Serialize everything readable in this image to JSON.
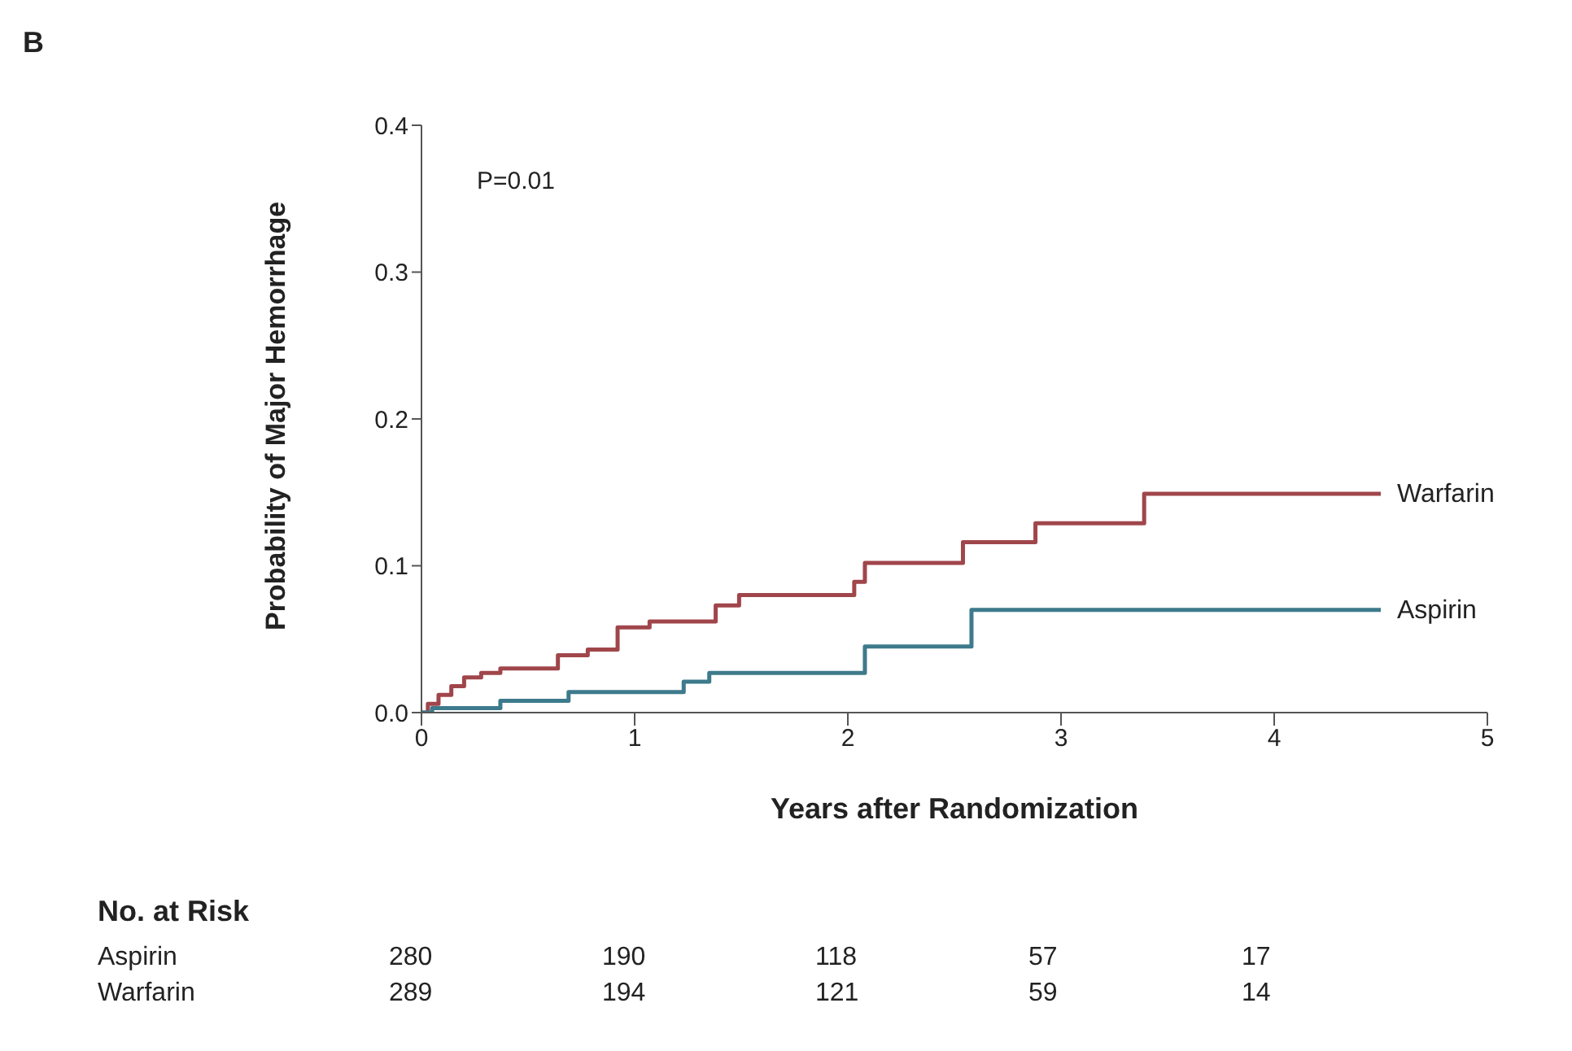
{
  "chart_data": {
    "type": "step",
    "title": "B",
    "xlabel": "Years after Randomization",
    "ylabel": "Probability of Major Hemorrhage",
    "series": [
      {
        "name": "Warfarin",
        "color": "#a0464b",
        "x": [
          0,
          0.03,
          0.08,
          0.14,
          0.2,
          0.28,
          0.37,
          0.64,
          0.78,
          0.92,
          1.07,
          1.38,
          1.49,
          2.03,
          2.08,
          2.54,
          2.88,
          3.39,
          4.5
        ],
        "values": [
          0,
          0.006,
          0.012,
          0.018,
          0.024,
          0.027,
          0.03,
          0.039,
          0.043,
          0.058,
          0.062,
          0.073,
          0.08,
          0.089,
          0.102,
          0.116,
          0.129,
          0.149,
          0.149
        ]
      },
      {
        "name": "Aspirin",
        "color": "#3d7a8c",
        "x": [
          0,
          0.05,
          0.37,
          0.69,
          1.23,
          1.35,
          2.08,
          2.58,
          4.5
        ],
        "values": [
          0,
          0.003,
          0.008,
          0.014,
          0.021,
          0.027,
          0.045,
          0.07,
          0.07
        ]
      }
    ],
    "xlim": [
      0,
      5
    ],
    "xticks": [
      0,
      1,
      2,
      3,
      4,
      5
    ],
    "ylim": [
      0,
      0.4
    ],
    "yticks": [
      {
        "value": 0,
        "label": "0.0"
      },
      0.1,
      0.2,
      0.3,
      0.4
    ],
    "grid": false,
    "annotations": [
      "P=0.01",
      "No. at Risk",
      "Aspirin",
      "280",
      "190",
      "118",
      "57",
      "17",
      "Warfarin",
      "289",
      "194",
      "121",
      "59",
      "14"
    ]
  }
}
